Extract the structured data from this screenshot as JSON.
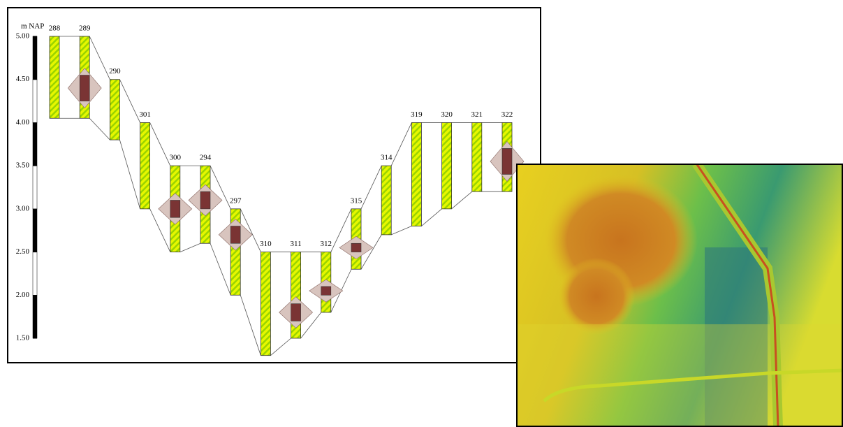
{
  "chart_data": {
    "type": "boreholes",
    "y_label": "m NAP",
    "categories": [
      "288",
      "289",
      "290",
      "301",
      "300",
      "294",
      "297",
      "310",
      "311",
      "312",
      "315",
      "314",
      "319",
      "320",
      "321",
      "322"
    ],
    "tops": [
      5.0,
      5.0,
      4.5,
      4.0,
      3.5,
      3.5,
      3.0,
      2.5,
      2.5,
      2.5,
      3.0,
      3.5,
      4.0,
      4.0,
      4.0,
      4.0
    ],
    "bottoms": [
      4.05,
      4.05,
      3.8,
      3.0,
      2.5,
      2.6,
      2.0,
      1.3,
      1.5,
      1.8,
      2.3,
      2.7,
      2.8,
      3.0,
      3.2,
      3.2
    ],
    "peat_tops": [
      null,
      4.55,
      null,
      null,
      3.1,
      3.2,
      2.8,
      null,
      1.9,
      2.1,
      2.6,
      null,
      null,
      null,
      null,
      3.7
    ],
    "peat_bottoms": [
      null,
      4.25,
      null,
      null,
      2.9,
      3.0,
      2.6,
      null,
      1.7,
      2.0,
      2.5,
      null,
      null,
      null,
      null,
      3.4
    ],
    "color": "#dff000",
    "peat_color": "#7a3434",
    "ylim": [
      1.5,
      5.0
    ],
    "yticks": [
      {
        "value": 1.5,
        "label": "1.50"
      },
      {
        "value": 2.0,
        "label": "2.00"
      },
      {
        "value": 2.5,
        "label": "2.50"
      },
      {
        "value": 3.0,
        "label": "3.00"
      },
      {
        "value": 3.5,
        "label": "3.50"
      },
      {
        "value": 4.0,
        "label": "4.00"
      },
      {
        "value": 4.5,
        "label": "4.50"
      },
      {
        "value": 5.0,
        "label": "5.00"
      }
    ]
  }
}
